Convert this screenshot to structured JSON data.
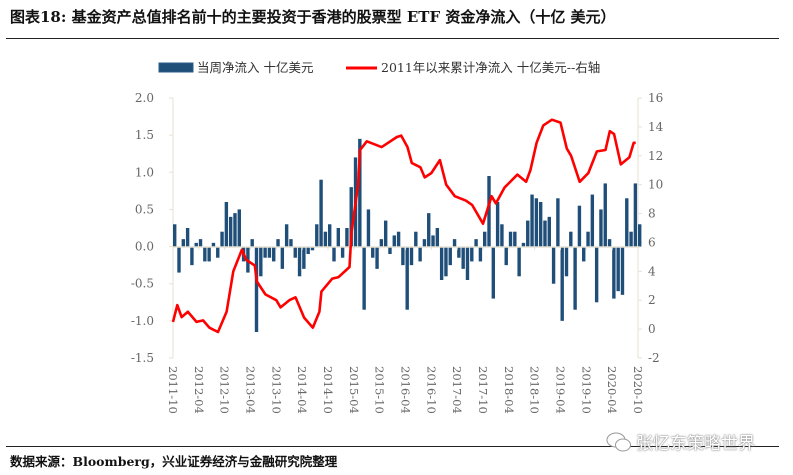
{
  "title": "图表18: 基金资产总值排名前十的主要投资于香港的股票型 ETF 资金净流入（十亿 美元）",
  "footer": "数据来源：Bloomberg，兴业证券经济与金融研究院整理",
  "watermark": "张忆东策略世界",
  "watermark_icon": "wechat-icon",
  "chart_data": {
    "type": "bar+line",
    "legend_position": "top",
    "grid": false,
    "colors": {
      "bars": "#1F4E79",
      "line": "#FF0000"
    },
    "left_axis": {
      "ylim": [
        -1.5,
        2.0
      ],
      "ticks": [
        "2.0",
        "1.5",
        "1.0",
        "0.5",
        "0.0",
        "-0.5",
        "-1.0",
        "-1.5"
      ]
    },
    "right_axis": {
      "ylim": [
        -2,
        16
      ],
      "ticks": [
        "16",
        "14",
        "12",
        "10",
        "8",
        "6",
        "4",
        "2",
        "0",
        "-2"
      ]
    },
    "x_ticks": [
      "2011-10",
      "2012-04",
      "2012-10",
      "2013-04",
      "2013-10",
      "2014-04",
      "2014-10",
      "2015-04",
      "2015-10",
      "2016-04",
      "2016-10",
      "2017-04",
      "2017-10",
      "2018-04",
      "2018-10",
      "2019-04",
      "2019-10",
      "2020-04",
      "2020-10"
    ],
    "series": [
      {
        "name": "当周净流入 十亿美元",
        "type": "bar",
        "axis": "left",
        "start": "2011-10",
        "frequency": "monthly",
        "values": [
          0.3,
          -0.35,
          0.1,
          0.25,
          -0.25,
          0.05,
          0.1,
          -0.2,
          -0.2,
          0.05,
          -0.15,
          0.2,
          0.6,
          0.4,
          0.45,
          0.5,
          -0.2,
          -0.35,
          0.1,
          -1.15,
          -0.4,
          -0.15,
          -0.15,
          -0.2,
          0.1,
          -0.3,
          0.3,
          0.1,
          -0.15,
          -0.4,
          -0.3,
          -0.1,
          -0.05,
          0.3,
          0.9,
          0.2,
          0.3,
          -0.2,
          0.25,
          -0.15,
          0.25,
          0.8,
          1.2,
          1.45,
          -0.85,
          0.5,
          -0.15,
          -0.3,
          0.1,
          0.35,
          -0.1,
          0.15,
          0.2,
          -0.25,
          -0.85,
          -0.25,
          0.2,
          -0.2,
          0.1,
          0.45,
          0.15,
          0.25,
          -0.45,
          -0.4,
          -0.25,
          0.1,
          -0.15,
          -0.3,
          -0.45,
          -0.2,
          0.1,
          -0.2,
          0.2,
          0.95,
          -0.7,
          0.6,
          0.3,
          -0.25,
          0.2,
          0.2,
          -0.4,
          0.05,
          0.35,
          0.7,
          0.65,
          0.6,
          0.35,
          0.4,
          -0.5,
          0.65,
          -1.0,
          -0.4,
          0.2,
          -0.85,
          0.55,
          -0.2,
          0.2,
          0.7,
          -0.75,
          0.5,
          0.85,
          0.1,
          -0.7,
          -0.6,
          -0.65,
          0.65,
          0.2,
          0.85,
          0.3
        ]
      },
      {
        "name": "2011年以来累计净流入 十亿美元--右轴",
        "type": "line",
        "axis": "right",
        "points": [
          [
            "2011-10-01",
            0.5
          ],
          [
            "2011-11-01",
            1.66
          ],
          [
            "2011-12-01",
            0.83
          ],
          [
            "2012-01-15",
            1.2
          ],
          [
            "2012-03-15",
            0.5
          ],
          [
            "2012-05-01",
            0.6
          ],
          [
            "2012-06-15",
            0.1
          ],
          [
            "2012-08-15",
            -0.2
          ],
          [
            "2012-10-15",
            1.2
          ],
          [
            "2012-12-01",
            4.0
          ],
          [
            "2013-02-01",
            5.5
          ],
          [
            "2013-03-01",
            4.8
          ],
          [
            "2013-05-01",
            4.4
          ],
          [
            "2013-05-15",
            3.3
          ],
          [
            "2013-07-15",
            2.4
          ],
          [
            "2013-10-01",
            2.0
          ],
          [
            "2013-11-01",
            1.5
          ],
          [
            "2014-01-01",
            2.0
          ],
          [
            "2014-02-15",
            2.2
          ],
          [
            "2014-04-15",
            0.8
          ],
          [
            "2014-06-15",
            0.1
          ],
          [
            "2014-08-01",
            1.2
          ],
          [
            "2014-08-15",
            2.6
          ],
          [
            "2014-11-01",
            3.5
          ],
          [
            "2014-12-15",
            3.6
          ],
          [
            "2015-03-01",
            4.3
          ],
          [
            "2015-03-15",
            6.7
          ],
          [
            "2015-05-01",
            10.0
          ],
          [
            "2015-05-15",
            12.4
          ],
          [
            "2015-07-01",
            13.0
          ],
          [
            "2015-10-15",
            12.6
          ],
          [
            "2016-02-01",
            13.3
          ],
          [
            "2016-03-01",
            13.4
          ],
          [
            "2016-04-15",
            12.6
          ],
          [
            "2016-05-15",
            11.5
          ],
          [
            "2016-07-15",
            11.2
          ],
          [
            "2016-08-15",
            10.5
          ],
          [
            "2016-10-01",
            10.8
          ],
          [
            "2016-12-01",
            11.7
          ],
          [
            "2017-01-15",
            10.0
          ],
          [
            "2017-03-15",
            9.2
          ],
          [
            "2017-06-01",
            8.9
          ],
          [
            "2017-07-15",
            8.6
          ],
          [
            "2017-10-01",
            7.3
          ],
          [
            "2017-12-01",
            9.2
          ],
          [
            "2018-01-01",
            8.7
          ],
          [
            "2018-03-01",
            9.8
          ],
          [
            "2018-06-01",
            10.7
          ],
          [
            "2018-08-01",
            10.2
          ],
          [
            "2018-09-01",
            11.0
          ],
          [
            "2018-10-15",
            12.9
          ],
          [
            "2018-12-01",
            14.1
          ],
          [
            "2019-02-01",
            14.5
          ],
          [
            "2019-04-01",
            14.3
          ],
          [
            "2019-05-15",
            12.5
          ],
          [
            "2019-06-15",
            12.0
          ],
          [
            "2019-08-15",
            10.2
          ],
          [
            "2019-10-15",
            10.8
          ],
          [
            "2019-12-15",
            12.3
          ],
          [
            "2020-02-15",
            12.4
          ],
          [
            "2020-03-15",
            13.7
          ],
          [
            "2020-04-15",
            13.5
          ],
          [
            "2020-06-01",
            11.4
          ],
          [
            "2020-08-01",
            11.9
          ],
          [
            "2020-09-01",
            12.9
          ],
          [
            "2020-09-15",
            12.9
          ]
        ]
      }
    ]
  }
}
